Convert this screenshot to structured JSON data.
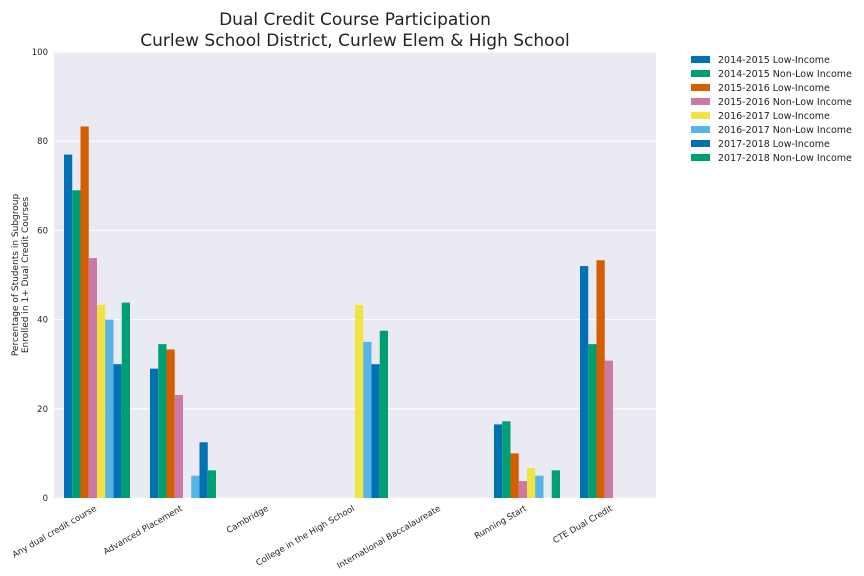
{
  "chart_data": {
    "type": "bar",
    "title": [
      "Dual Credit Course Participation",
      "Curlew School District, Curlew Elem & High School"
    ],
    "xlabel": "",
    "ylabel": [
      "Percentage of Students in Subgroup",
      "Enrolled in 1+ Dual Credit Courses"
    ],
    "ylim": [
      0,
      100
    ],
    "yticks": [
      0,
      20,
      40,
      60,
      80,
      100
    ],
    "grid": true,
    "legend_position": "outside-top-right",
    "categories": [
      "Any dual credit course",
      "Advanced Placement",
      "Cambridge",
      "College in the High School",
      "International Baccalaureate",
      "Running Start",
      "CTE Dual Credit"
    ],
    "series": [
      {
        "name": "2014-2015 Low-Income",
        "color": "#0072b2",
        "values": [
          77,
          29,
          0,
          0,
          0,
          16.5,
          52
        ]
      },
      {
        "name": "2014-2015 Non-Low Income",
        "color": "#009e73",
        "values": [
          69,
          34.5,
          0,
          0,
          0,
          17.2,
          34.5
        ]
      },
      {
        "name": "2015-2016 Low-Income",
        "color": "#d55e00",
        "values": [
          83.3,
          33.3,
          0,
          0,
          0,
          10,
          53.3
        ]
      },
      {
        "name": "2015-2016 Non-Low Income",
        "color": "#cc79a7",
        "values": [
          53.8,
          23.1,
          0,
          0,
          0,
          3.8,
          30.8
        ]
      },
      {
        "name": "2016-2017 Low-Income",
        "color": "#f0e442",
        "values": [
          43.3,
          0,
          0,
          43.3,
          0,
          6.7,
          0
        ]
      },
      {
        "name": "2016-2017 Non-Low Income",
        "color": "#56b4e9",
        "values": [
          40,
          5,
          0,
          35,
          0,
          5,
          0
        ]
      },
      {
        "name": "2017-2018 Low-Income",
        "color": "#0072b2",
        "values": [
          30,
          12.5,
          0,
          30,
          0,
          0,
          0
        ]
      },
      {
        "name": "2017-2018 Non-Low Income",
        "color": "#009e73",
        "values": [
          43.8,
          6.2,
          0,
          37.5,
          0,
          6.2,
          0
        ]
      }
    ]
  }
}
